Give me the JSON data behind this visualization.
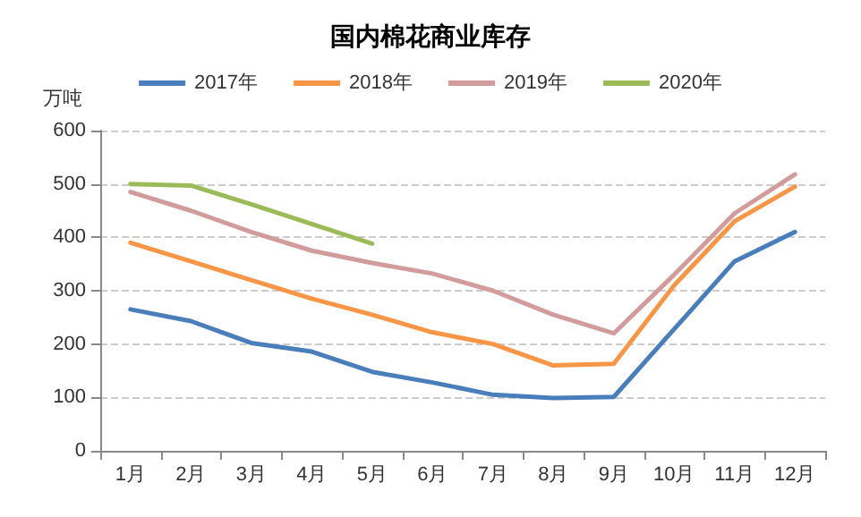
{
  "chart_data": {
    "type": "line",
    "title": "国内棉花商业库存",
    "ylabel": "万吨",
    "categories": [
      "1月",
      "2月",
      "3月",
      "4月",
      "5月",
      "6月",
      "7月",
      "8月",
      "9月",
      "10月",
      "11月",
      "12月"
    ],
    "series": [
      {
        "name": "2017年",
        "color": "#4a7ebb",
        "values": [
          265,
          243,
          202,
          186,
          148,
          128,
          105,
          99,
          101,
          228,
          355,
          410
        ]
      },
      {
        "name": "2018年",
        "color": "#f79646",
        "values": [
          390,
          355,
          320,
          285,
          255,
          222,
          200,
          160,
          163,
          310,
          430,
          495
        ]
      },
      {
        "name": "2019年",
        "color": "#d19c9b",
        "values": [
          485,
          450,
          410,
          375,
          352,
          332,
          300,
          255,
          220,
          330,
          445,
          518
        ]
      },
      {
        "name": "2020年",
        "color": "#9bbb59",
        "values": [
          500,
          497,
          462,
          425,
          388,
          null,
          null,
          null,
          null,
          null,
          null,
          null
        ]
      }
    ],
    "ylim": [
      0,
      600
    ],
    "yticks": [
      0,
      100,
      200,
      300,
      400,
      500,
      600
    ],
    "grid": "y",
    "legend": "top",
    "marker": "none",
    "line_style": "solid"
  }
}
